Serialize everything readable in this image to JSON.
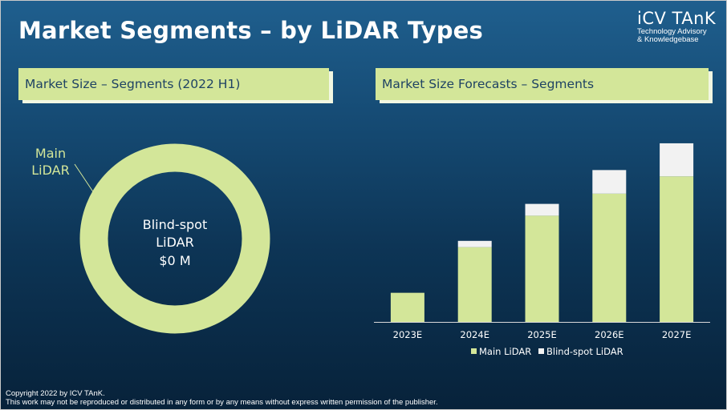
{
  "title": "Market Segments – by LiDAR Types",
  "logo": {
    "name": "iCV TAnK",
    "tagline_1": "Technology Advisory",
    "tagline_2": "& Knowledgebase"
  },
  "sections": {
    "left": "Market Size – Segments (2022 H1)",
    "right": "Market Size Forecasts – Segments"
  },
  "colors": {
    "main_lidar": "#d3e699",
    "blind_spot_lidar": "#f2f2f2",
    "text_light": "#ffffff",
    "label_green": "#d3e699"
  },
  "chart_data": [
    {
      "type": "pie",
      "subtype": "donut",
      "labels": [
        "Main LiDAR",
        "Blind-spot LiDAR"
      ],
      "values": [
        100,
        0
      ],
      "label_texts": {
        "main": [
          "Main",
          "LiDAR"
        ],
        "blind_spot": [
          "Blind-spot",
          "LiDAR",
          "$0 M"
        ]
      }
    },
    {
      "type": "bar",
      "stacked": true,
      "categories": [
        "2023E",
        "2024E",
        "2025E",
        "2026E",
        "2027E"
      ],
      "series": [
        {
          "name": "Main LiDAR",
          "values": [
            37,
            95,
            135,
            163,
            185
          ]
        },
        {
          "name": "Blind-spot LiDAR",
          "values": [
            0,
            8,
            15,
            30,
            42
          ]
        }
      ],
      "ylim": [
        0,
        230
      ],
      "grid": false,
      "legend": "bottom"
    }
  ],
  "footer": {
    "line1": "Copyright  2022 by ICV TAnK.",
    "line2": "This work may not be reproduced or distributed in any form or by any means without express written permission of the publisher."
  }
}
